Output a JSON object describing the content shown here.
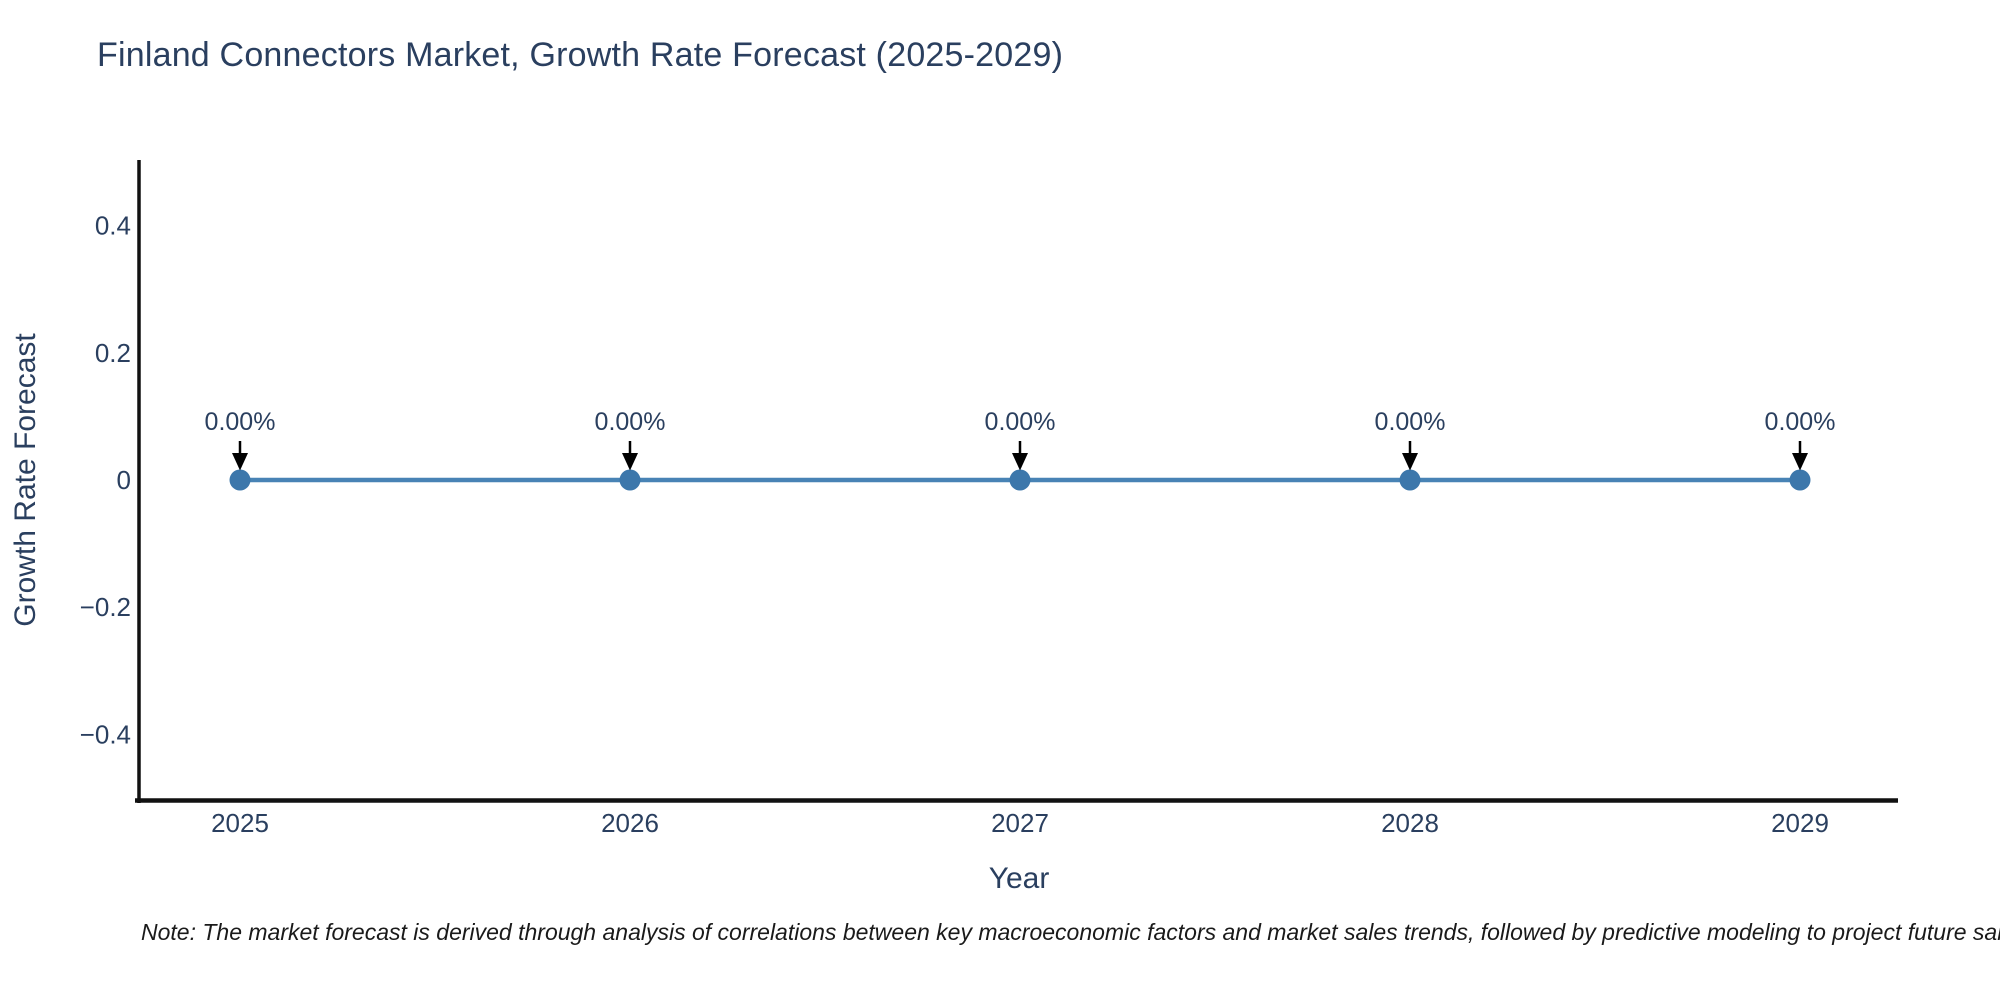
{
  "chart_data": {
    "type": "line",
    "title": "Finland Connectors Market, Growth Rate Forecast (2025-2029)",
    "xlabel": "Year",
    "ylabel": "Growth Rate Forecast",
    "categories": [
      "2025",
      "2026",
      "2027",
      "2028",
      "2029"
    ],
    "series": [
      {
        "name": "Growth Rate Forecast",
        "values": [
          0,
          0,
          0,
          0,
          0
        ]
      }
    ],
    "point_labels": [
      "0.00%",
      "0.00%",
      "0.00%",
      "0.00%",
      "0.00%"
    ],
    "ylim": [
      -0.5,
      0.5
    ],
    "yticks": [
      {
        "value": 0.4,
        "label": "0.4"
      },
      {
        "value": 0.2,
        "label": "0.2"
      },
      {
        "value": 0,
        "label": "0"
      },
      {
        "value": -0.2,
        "label": "−0.2"
      },
      {
        "value": -0.4,
        "label": "−0.4"
      }
    ],
    "grid": false,
    "legend": false,
    "line_style": "line+markers",
    "annotation_arrows": true
  },
  "footnote": "Note: The market forecast is derived through analysis of correlations between key macroeconomic factors and market sales trends, followed by predictive modeling to project future sales.",
  "colors": {
    "background": "#ffffff",
    "title_text": "#2a3f5f",
    "tick_text": "#2a3f5f",
    "axis_line": "#111111",
    "series_line": "#4883b5",
    "marker_fill": "#3c77ab",
    "annotation_text": "#2a3f5f",
    "arrow": "#000000",
    "note_text": "#1a1a1a"
  }
}
